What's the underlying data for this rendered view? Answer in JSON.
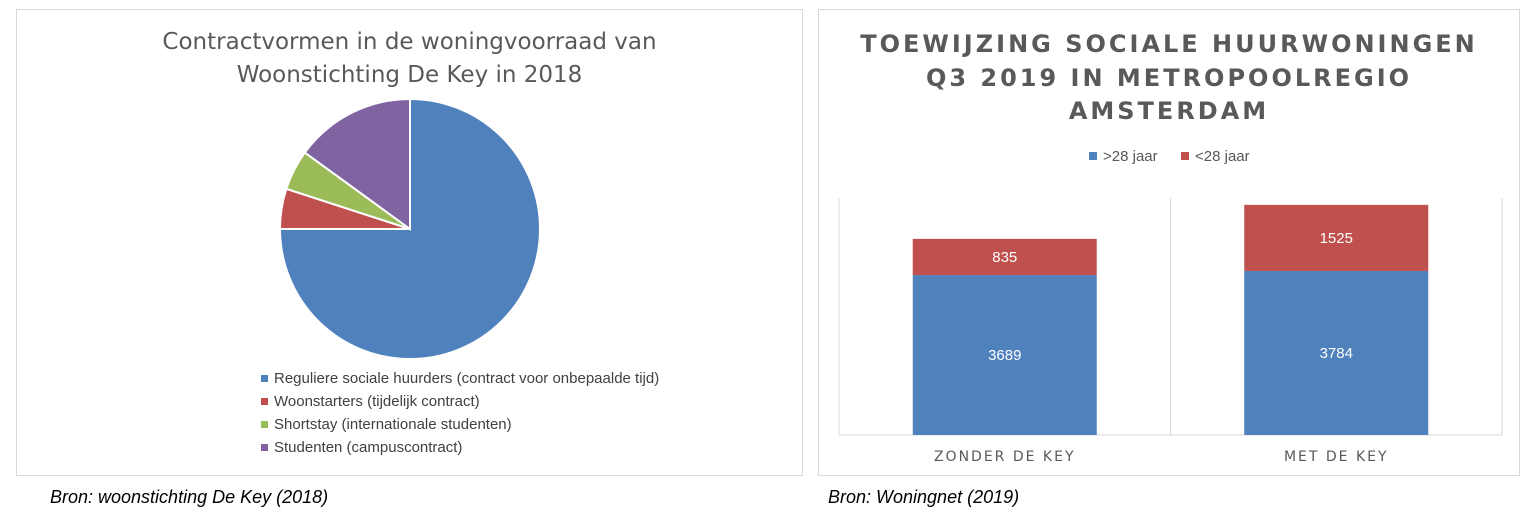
{
  "charts": {
    "pie": {
      "title_line1": "Contractvormen in de woningvoorraad van",
      "title_line2": "Woonstichting De Key in 2018",
      "source": "Bron: woonstichting De Key (2018)"
    },
    "bar": {
      "title_line1": "TOEWIJZING SOCIALE HUURWONINGEN",
      "title_line2": "Q3 2019 IN METROPOOLREGIO",
      "title_line3": "AMSTERDAM",
      "source": "Bron: Woningnet (2019)"
    }
  },
  "chart_data": [
    {
      "type": "pie",
      "title": "Contractvormen in de woningvoorraad van Woonstichting De Key in 2018",
      "slices": [
        {
          "label": "Reguliere sociale huurders (contract voor onbepaalde tijd)",
          "value": 75,
          "color": "#4f81bd"
        },
        {
          "label": "Woonstarters (tijdelijk contract)",
          "value": 5,
          "color": "#c0504d"
        },
        {
          "label": "Shortstay (internationale studenten)",
          "value": 5,
          "color": "#9bbb59"
        },
        {
          "label": "Studenten (campuscontract)",
          "value": 15,
          "color": "#8064a2"
        }
      ],
      "legend_placement": "bottom"
    },
    {
      "type": "bar",
      "stacked": true,
      "title": "TOEWIJZING SOCIALE HUURWONINGEN Q3 2019 IN METROPOOLREGIO AMSTERDAM",
      "categories": [
        "ZONDER DE KEY",
        "MET DE KEY"
      ],
      "series": [
        {
          "name": ">28 jaar",
          "values": [
            3689,
            3784
          ],
          "color": "#4f81bd"
        },
        {
          "name": "<28 jaar",
          "values": [
            835,
            1525
          ],
          "color": "#c0504d"
        }
      ],
      "ylim": [
        0,
        5500
      ],
      "grid": false,
      "legend_placement": "top"
    }
  ]
}
